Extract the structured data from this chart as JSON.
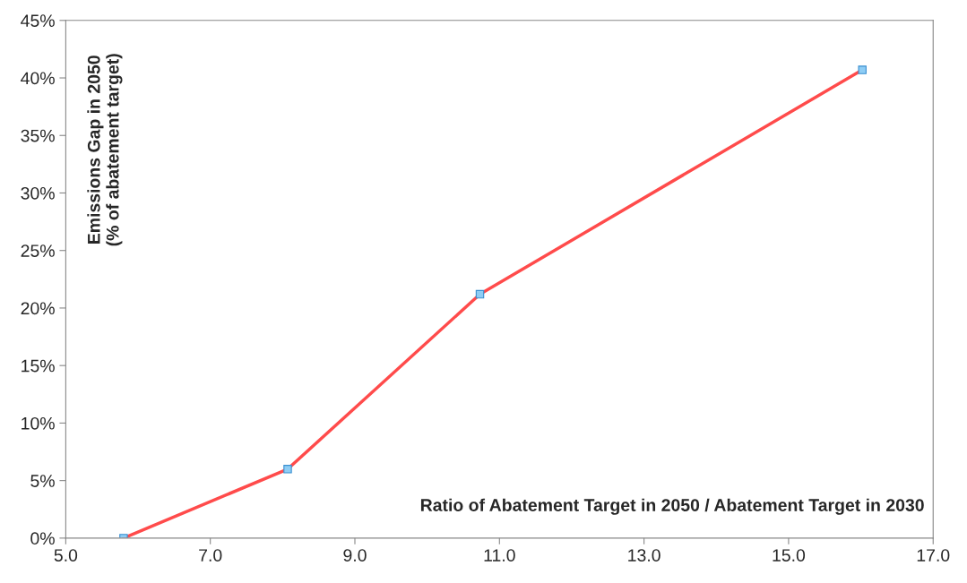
{
  "chart_data": {
    "type": "line",
    "xlabel": "Ratio of Abatement Target in 2050 / Abatement Target in 2030",
    "ylabel": "Emissions Gap in 2050\n(% of abatement target)",
    "x": [
      5.8,
      8.07,
      10.73,
      16.02
    ],
    "series": [
      {
        "color": "#ff4b4b",
        "values": [
          0,
          6.0,
          21.2,
          40.7
        ]
      }
    ],
    "marker": "square",
    "line_style": "solid",
    "grid": false,
    "xlim": [
      5,
      17
    ],
    "xticks": [
      {
        "value": 5,
        "label": "5.0"
      },
      {
        "value": 7,
        "label": "7.0"
      },
      {
        "value": 9,
        "label": "9.0"
      },
      {
        "value": 11,
        "label": "11.0"
      },
      {
        "value": 13,
        "label": "13.0"
      },
      {
        "value": 15,
        "label": "15.0"
      },
      {
        "value": 17,
        "label": "17.0"
      }
    ],
    "ylim": [
      0,
      45
    ],
    "yticks": [
      {
        "value": 0,
        "label": "0%"
      },
      {
        "value": 5,
        "label": "5%"
      },
      {
        "value": 10,
        "label": "10%"
      },
      {
        "value": 15,
        "label": "15%"
      },
      {
        "value": 20,
        "label": "20%"
      },
      {
        "value": 25,
        "label": "25%"
      },
      {
        "value": 30,
        "label": "30%"
      },
      {
        "value": 35,
        "label": "35%"
      },
      {
        "value": 40,
        "label": "40%"
      },
      {
        "value": 45,
        "label": "45%"
      }
    ]
  }
}
